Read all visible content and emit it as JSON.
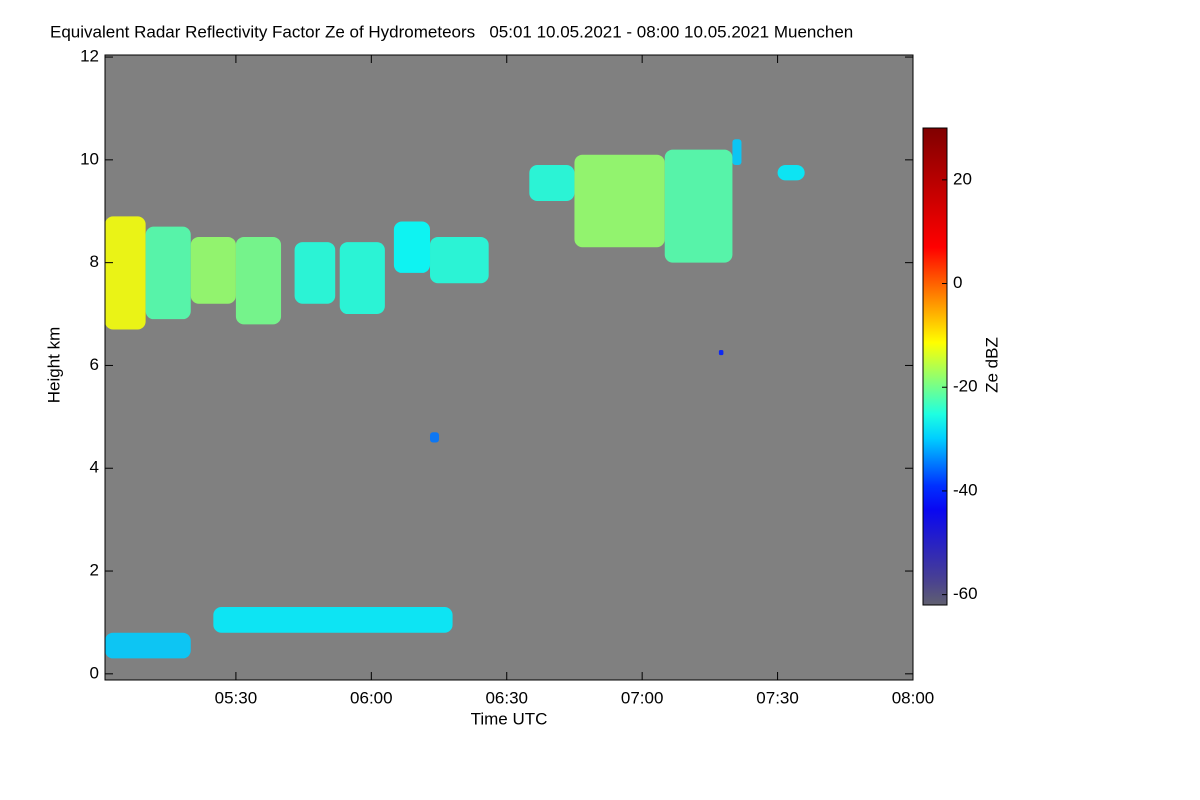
{
  "chart_data": {
    "type": "heatmap",
    "title": "Equivalent Radar Reflectivity Factor Ze of Hydrometeors   05:01 10.05.2021 - 08:00 10.05.2021 Muenchen",
    "x_label": "Time UTC",
    "y_label": "Height km",
    "z_label": "Ze dBZ",
    "background": "#808080",
    "xlim": [
      "05:01",
      "08:00"
    ],
    "xticks": [
      "05:30",
      "06:00",
      "06:30",
      "07:00",
      "07:30",
      "08:00"
    ],
    "ylim": [
      -0.12,
      12.04
    ],
    "yticks": [
      0,
      2,
      4,
      6,
      8,
      10,
      12
    ],
    "zlim": [
      -62,
      30
    ],
    "zticks": [
      20,
      0,
      -20,
      -40,
      -60
    ],
    "cells": [
      {
        "x": [
          "05:01",
          "05:10"
        ],
        "y": [
          6.7,
          8.9
        ],
        "z": -12
      },
      {
        "x": [
          "05:10",
          "05:20"
        ],
        "y": [
          6.9,
          8.7
        ],
        "z": -22
      },
      {
        "x": [
          "05:20",
          "05:30"
        ],
        "y": [
          7.2,
          8.5
        ],
        "z": -18
      },
      {
        "x": [
          "05:30",
          "05:40"
        ],
        "y": [
          6.8,
          8.5
        ],
        "z": -20
      },
      {
        "x": [
          "05:43",
          "05:52"
        ],
        "y": [
          7.2,
          8.4
        ],
        "z": -25
      },
      {
        "x": [
          "05:53",
          "06:03"
        ],
        "y": [
          7.0,
          8.4
        ],
        "z": -25
      },
      {
        "x": [
          "06:05",
          "06:13"
        ],
        "y": [
          7.8,
          8.8
        ],
        "z": -27
      },
      {
        "x": [
          "06:13",
          "06:26"
        ],
        "y": [
          7.6,
          8.5
        ],
        "z": -25
      },
      {
        "x": [
          "06:35",
          "06:45"
        ],
        "y": [
          9.2,
          9.9
        ],
        "z": -25
      },
      {
        "x": [
          "06:45",
          "07:05"
        ],
        "y": [
          8.3,
          10.1
        ],
        "z": -18
      },
      {
        "x": [
          "07:05",
          "07:20"
        ],
        "y": [
          8.0,
          10.2
        ],
        "z": -22
      },
      {
        "x": [
          "07:20",
          "07:22"
        ],
        "y": [
          9.9,
          10.4
        ],
        "z": -30
      },
      {
        "x": [
          "07:30",
          "07:36"
        ],
        "y": [
          9.6,
          9.9
        ],
        "z": -28
      },
      {
        "x": [
          "06:13",
          "06:15"
        ],
        "y": [
          4.5,
          4.7
        ],
        "z": -35
      },
      {
        "x": [
          "07:17",
          "07:18"
        ],
        "y": [
          6.2,
          6.3
        ],
        "z": -40
      },
      {
        "x": [
          "05:01",
          "05:20"
        ],
        "y": [
          0.3,
          0.8
        ],
        "z": -30
      },
      {
        "x": [
          "05:25",
          "06:18"
        ],
        "y": [
          0.8,
          1.3
        ],
        "z": -28
      }
    ]
  }
}
